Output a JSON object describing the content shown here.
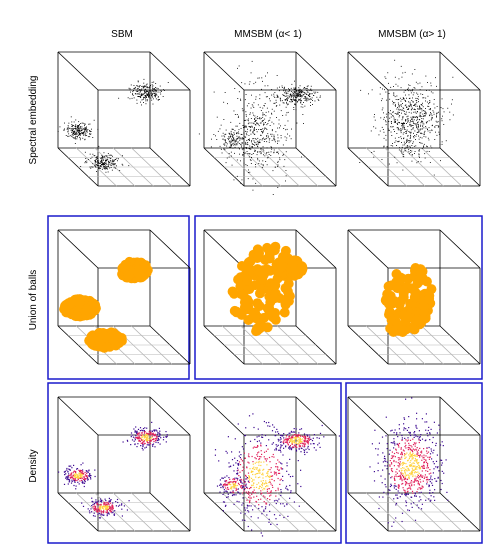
{
  "columns": [
    {
      "label": "SBM"
    },
    {
      "label": "MMSBM (α< 1)"
    },
    {
      "label": "MMSBM (α> 1)"
    }
  ],
  "rows": [
    {
      "label": "Spectral embedding",
      "style": "points"
    },
    {
      "label": "Union of balls",
      "style": "balls"
    },
    {
      "label": "Density",
      "style": "density"
    }
  ],
  "colors": {
    "points": "#000000",
    "balls": "#ffa500",
    "frame": "#1a1acc",
    "density_low": "#3d0a91",
    "density_mid": "#e0205a",
    "density_high": "#ffd23f"
  }
}
